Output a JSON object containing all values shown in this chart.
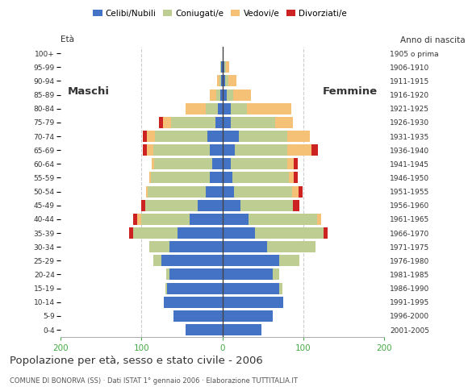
{
  "age_groups": [
    "0-4",
    "5-9",
    "10-14",
    "15-19",
    "20-24",
    "25-29",
    "30-34",
    "35-39",
    "40-44",
    "45-49",
    "50-54",
    "55-59",
    "60-64",
    "65-69",
    "70-74",
    "75-79",
    "80-84",
    "85-89",
    "90-94",
    "95-99",
    "100+"
  ],
  "birth_years": [
    "2001-2005",
    "1996-2000",
    "1991-1995",
    "1986-1990",
    "1981-1985",
    "1976-1980",
    "1971-1975",
    "1966-1970",
    "1961-1965",
    "1956-1960",
    "1951-1955",
    "1946-1950",
    "1941-1945",
    "1936-1940",
    "1931-1935",
    "1926-1930",
    "1921-1925",
    "1916-1920",
    "1911-1915",
    "1906-1910",
    "1905 o prima"
  ],
  "male_celibi": [
    45,
    60,
    72,
    68,
    65,
    75,
    65,
    55,
    40,
    30,
    20,
    15,
    12,
    15,
    18,
    8,
    5,
    2,
    1,
    1,
    0
  ],
  "male_coniugati": [
    0,
    0,
    0,
    2,
    4,
    10,
    25,
    55,
    60,
    65,
    72,
    73,
    72,
    70,
    65,
    55,
    15,
    5,
    2,
    1,
    0
  ],
  "male_vedovi": [
    0,
    0,
    0,
    0,
    0,
    0,
    0,
    0,
    5,
    0,
    2,
    2,
    3,
    8,
    10,
    10,
    25,
    8,
    3,
    0,
    0
  ],
  "male_divorziati": [
    0,
    0,
    0,
    0,
    0,
    0,
    0,
    5,
    5,
    5,
    0,
    0,
    0,
    5,
    5,
    5,
    0,
    0,
    0,
    0,
    0
  ],
  "female_celibi": [
    48,
    62,
    75,
    70,
    62,
    70,
    55,
    40,
    32,
    22,
    14,
    12,
    10,
    15,
    20,
    10,
    10,
    5,
    3,
    2,
    0
  ],
  "female_coniugati": [
    0,
    0,
    0,
    4,
    8,
    25,
    60,
    85,
    85,
    65,
    72,
    70,
    70,
    65,
    60,
    55,
    20,
    8,
    4,
    2,
    0
  ],
  "female_vedovi": [
    0,
    0,
    0,
    0,
    0,
    0,
    0,
    0,
    5,
    0,
    8,
    6,
    8,
    30,
    28,
    22,
    55,
    22,
    10,
    4,
    1
  ],
  "female_divorziati": [
    0,
    0,
    0,
    0,
    0,
    0,
    0,
    5,
    0,
    8,
    5,
    5,
    5,
    8,
    0,
    0,
    0,
    0,
    0,
    0,
    0
  ],
  "color_celibi": "#4472C4",
  "color_coniugati": "#BECE93",
  "color_vedovi": "#F5C177",
  "color_divorziati": "#CC2222",
  "xlim": 200,
  "title": "Popolazione per età, sesso e stato civile - 2006",
  "subtitle": "COMUNE DI BONORVA (SS) · Dati ISTAT 1° gennaio 2006 · Elaborazione TUTTITALIA.IT",
  "ylabel_left": "Età",
  "ylabel_right": "Anno di nascita",
  "label_maschi": "Maschi",
  "label_femmine": "Femmine",
  "legend_labels": [
    "Celibi/Nubili",
    "Coniugati/e",
    "Vedovi/e",
    "Divorziati/e"
  ],
  "bg_color": "#ffffff",
  "grid_color": "#cccccc",
  "xtick_color": "#44AA44",
  "text_color": "#333333",
  "subtitle_color": "#555555"
}
